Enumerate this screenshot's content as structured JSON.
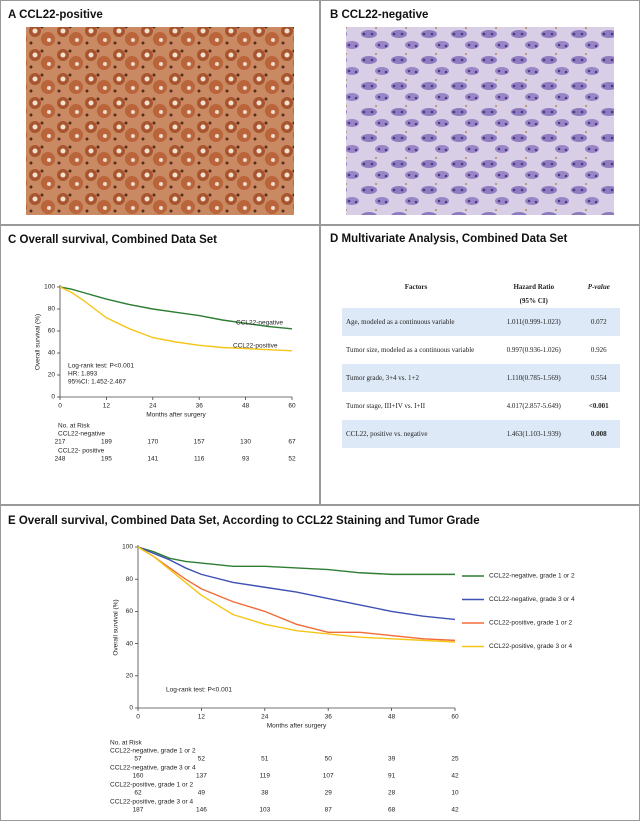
{
  "panel_a": {
    "title": "A CCL22-positive"
  },
  "panel_b": {
    "title": "B CCL22-negative"
  },
  "table": {
    "title": "D Multivariate Analysis, Combined Data Set",
    "headers": [
      "Factors",
      "Hazard Ratio",
      "P-value"
    ],
    "subheader": "(95% CI)",
    "rows": [
      [
        "Age, modeled as a continuous variable",
        "1.011(0.999-1.023)",
        "0.072"
      ],
      [
        "Tumor size, modeled as a continuous variable",
        "0.997(0.936-1.026)",
        "0.926"
      ],
      [
        "Tumor grade, 3+4 vs. 1+2",
        "1.110(0.785-1.569)",
        "0.554"
      ],
      [
        "Tumor stage, III+IV vs. I+II",
        "4.017(2.857-5.649)",
        "<0.001"
      ],
      [
        "CCL22, positive vs. negative",
        "1.463(1.103-1.939)",
        "0.008"
      ]
    ]
  },
  "chart_data": [
    {
      "type": "line",
      "title": "C Overall survival, Combined Data Set",
      "xlabel": "Months after surgery",
      "ylabel": "Overall survival (%)",
      "xlim": [
        0,
        60
      ],
      "xticks": [
        0,
        12,
        24,
        36,
        48,
        60
      ],
      "ylim": [
        0,
        100
      ],
      "yticks": [
        0,
        20,
        40,
        60,
        80,
        100
      ],
      "legend": "curve",
      "series": [
        {
          "name": "CCL22-negative",
          "color": "#2e7d32",
          "x": [
            0,
            3,
            6,
            9,
            12,
            18,
            24,
            30,
            36,
            42,
            48,
            54,
            60
          ],
          "values": [
            100,
            98,
            95,
            92,
            89,
            84,
            80,
            77,
            74,
            70,
            67,
            64,
            62
          ]
        },
        {
          "name": "CCL22-positive",
          "color": "#f5c518",
          "x": [
            0,
            3,
            6,
            9,
            12,
            18,
            24,
            30,
            36,
            42,
            48,
            54,
            60
          ],
          "values": [
            100,
            95,
            88,
            80,
            72,
            62,
            54,
            50,
            47,
            45,
            44,
            43,
            42
          ]
        }
      ],
      "annotations": [
        "Log-rank test: P<0.001",
        "HR: 1.893",
        "95%CI: 1.452-2.467"
      ],
      "risk_table": {
        "title": "No. at Risk",
        "rows": [
          {
            "label": "CCL22-negative",
            "counts": [
              "217",
              "189",
              "170",
              "157",
              "130",
              "67"
            ]
          },
          {
            "label": "CCL22- positive",
            "counts": [
              "248",
              "195",
              "141",
              "116",
              "93",
              "52"
            ]
          }
        ]
      }
    },
    {
      "type": "line",
      "title": "E Overall survival, Combined Data Set, According to CCL22 Staining and Tumor Grade",
      "xlabel": "Months after surgery",
      "ylabel": "Overall survival (%)",
      "xlim": [
        0,
        60
      ],
      "xticks": [
        0,
        12,
        24,
        36,
        48,
        60
      ],
      "ylim": [
        0,
        100
      ],
      "yticks": [
        0,
        20,
        40,
        60,
        80,
        100
      ],
      "legend": "right",
      "series": [
        {
          "name": "CCL22-negative, grade 1 or 2",
          "color": "#2e7d32",
          "x": [
            0,
            3,
            6,
            9,
            12,
            18,
            24,
            30,
            36,
            42,
            48,
            54,
            60
          ],
          "values": [
            100,
            97,
            93,
            91,
            90,
            88,
            88,
            87,
            86,
            84,
            83,
            83,
            83
          ]
        },
        {
          "name": "CCL22-negative, grade 3 or 4",
          "color": "#3f51b5",
          "x": [
            0,
            3,
            6,
            9,
            12,
            18,
            24,
            30,
            36,
            42,
            48,
            54,
            60
          ],
          "values": [
            100,
            96,
            92,
            87,
            83,
            78,
            75,
            72,
            68,
            64,
            60,
            57,
            55
          ]
        },
        {
          "name": "CCL22-positive, grade 1 or 2",
          "color": "#f26b3a",
          "x": [
            0,
            3,
            6,
            9,
            12,
            18,
            24,
            30,
            36,
            42,
            48,
            54,
            60
          ],
          "values": [
            100,
            94,
            87,
            80,
            74,
            66,
            60,
            52,
            47,
            47,
            45,
            43,
            42
          ]
        },
        {
          "name": "CCL22-positive, grade 3 or 4",
          "color": "#f5c518",
          "x": [
            0,
            3,
            6,
            9,
            12,
            18,
            24,
            30,
            36,
            42,
            48,
            54,
            60
          ],
          "values": [
            100,
            94,
            86,
            78,
            70,
            58,
            52,
            48,
            46,
            44,
            43,
            42,
            41
          ]
        }
      ],
      "annotations": [
        "Log-rank test: P<0.001"
      ],
      "risk_table": {
        "title": "No. at Risk",
        "rows": [
          {
            "label": "CCL22-negative, grade 1 or 2",
            "counts": [
              "57",
              "52",
              "51",
              "50",
              "39",
              "25"
            ]
          },
          {
            "label": "CCL22-negative, grade 3 or 4",
            "counts": [
              "160",
              "137",
              "119",
              "107",
              "91",
              "42"
            ]
          },
          {
            "label": "CCL22-positive, grade 1 or 2",
            "counts": [
              "62",
              "49",
              "38",
              "29",
              "28",
              "10"
            ]
          },
          {
            "label": "CCL22-positive, grade 3 or 4",
            "counts": [
              "187",
              "146",
              "103",
              "87",
              "68",
              "42"
            ]
          }
        ]
      }
    }
  ]
}
